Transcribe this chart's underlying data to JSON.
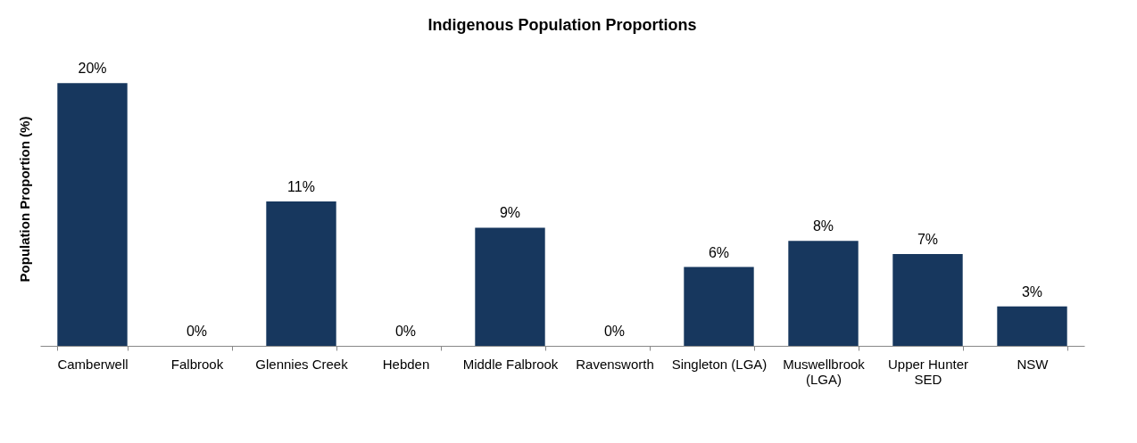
{
  "chart_data": {
    "type": "bar",
    "title": "Indigenous Population Proportions",
    "ylabel": "Population Proportion (%)",
    "categories": [
      "Camberwell",
      "Falbrook",
      "Glennies Creek",
      "Hebden",
      "Middle Falbrook",
      "Ravensworth",
      "Singleton (LGA)",
      "Muswellbrook (LGA)",
      "Upper Hunter SED",
      "NSW"
    ],
    "values": [
      20,
      0,
      11,
      0,
      9,
      0,
      6,
      8,
      7,
      3
    ],
    "value_labels": [
      "20%",
      "0%",
      "11%",
      "0%",
      "9%",
      "0%",
      "6%",
      "8%",
      "7%",
      "3%"
    ],
    "color": "#17375e"
  }
}
